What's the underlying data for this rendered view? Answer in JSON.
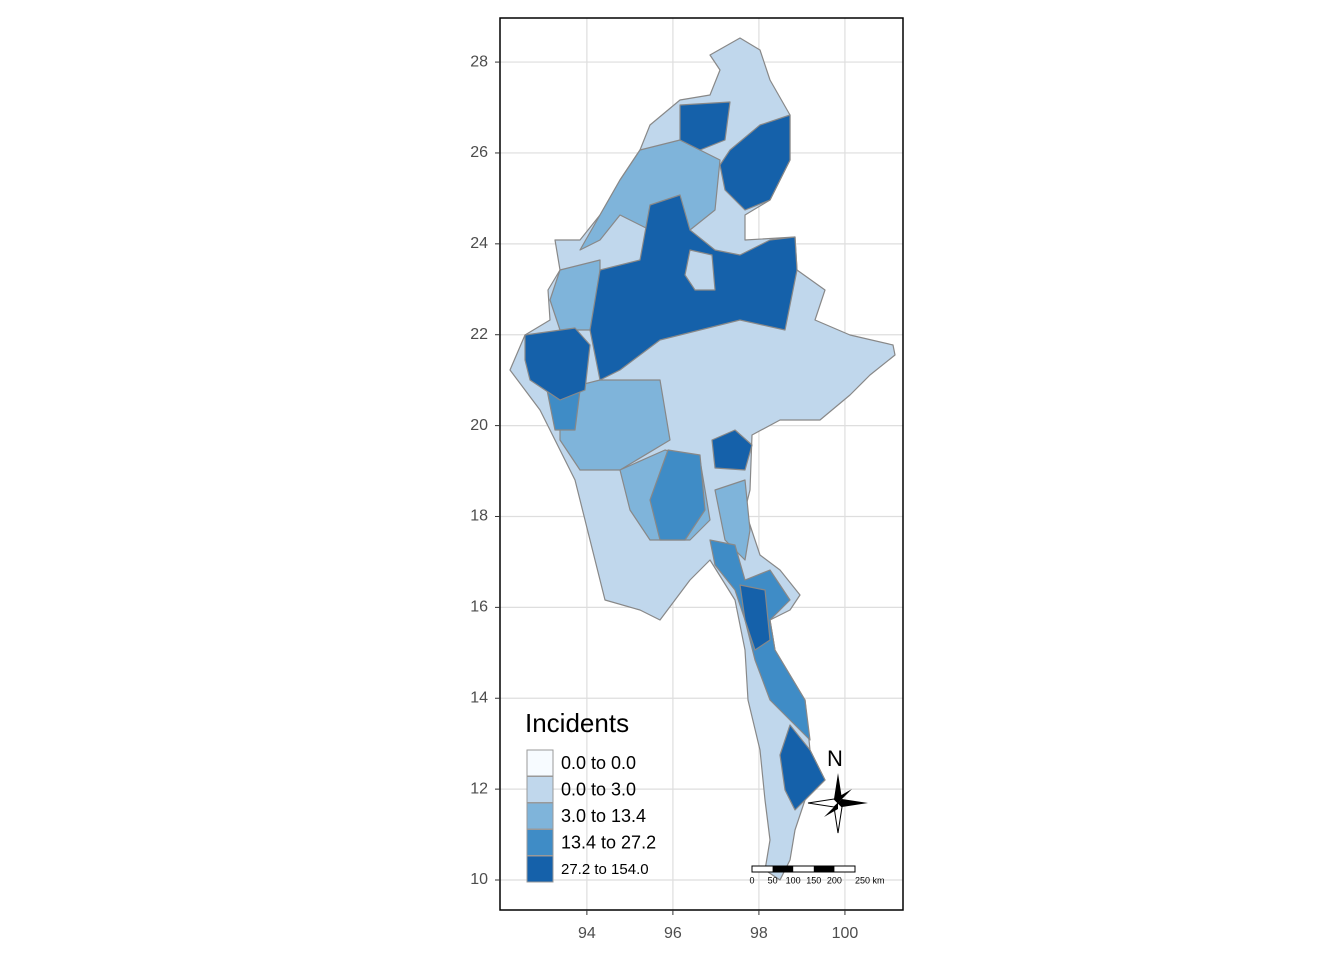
{
  "chart_data": {
    "type": "map",
    "xlim": [
      91.98,
      101.35
    ],
    "ylim": [
      9.34,
      28.97
    ],
    "xticks": [
      94,
      96,
      98,
      100
    ],
    "yticks": [
      10,
      12,
      14,
      16,
      18,
      20,
      22,
      24,
      26,
      28
    ],
    "grid": true,
    "legend": {
      "title": "Incidents",
      "corner": "bottom-left",
      "entries": [
        {
          "label": "0.0 to 0.0",
          "color": "#f7fbff"
        },
        {
          "label": "0.0 to 3.0",
          "color": "#c0d7ec"
        },
        {
          "label": "3.0 to 13.4",
          "color": "#7fb4da"
        },
        {
          "label": "13.4 to 27.2",
          "color": "#3f8cc6"
        },
        {
          "label": "27.2 to 154.0",
          "color": "#1561aa"
        }
      ]
    },
    "north_arrow": "N",
    "scale_bar": [
      "0",
      "50",
      "100",
      "150",
      "200",
      "250 km"
    ]
  }
}
